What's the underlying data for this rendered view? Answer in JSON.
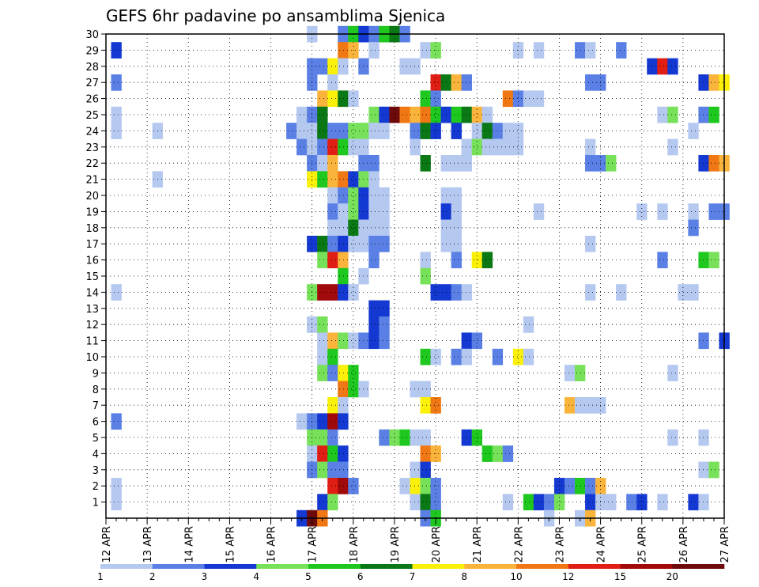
{
  "chart_data": {
    "type": "heatmap",
    "title": "GEFS 6hr padavine po ansamblima Sjenica",
    "xlabel": "",
    "ylabel": "",
    "x_ticks": [
      "12 APR",
      "13 APR",
      "14 APR",
      "15 APR",
      "16 APR",
      "17 APR",
      "18 APR",
      "19 APR",
      "20 APR",
      "21 APR",
      "22 APR",
      "23 APR",
      "24 APR",
      "25 APR",
      "26 APR",
      "27 APR"
    ],
    "x_range": [
      0,
      60
    ],
    "x_unit": "6-hour step from 12 APR 00Z",
    "y_ticks": [
      1,
      2,
      3,
      4,
      5,
      6,
      7,
      8,
      9,
      10,
      11,
      12,
      13,
      14,
      15,
      16,
      17,
      18,
      19,
      20,
      21,
      22,
      23,
      24,
      25,
      26,
      27,
      28,
      29,
      30
    ],
    "y_range": [
      0,
      30
    ],
    "grid": true,
    "legend": {
      "placement": "bottom",
      "levels": [
        "1",
        "2",
        "3",
        "4",
        "5",
        "6",
        "7",
        "8",
        "10",
        "12",
        "15",
        "20"
      ],
      "colors": [
        "#b4c8f0",
        "#5a80e6",
        "#1438d2",
        "#78e15a",
        "#1ec81e",
        "#0a7814",
        "#faf00a",
        "#fab43c",
        "#f07814",
        "#e11e14",
        "#a00a0a",
        "#6e0a0a"
      ]
    },
    "cells": [
      [
        20,
        30,
        0
      ],
      [
        23,
        30,
        1
      ],
      [
        24,
        30,
        4
      ],
      [
        25,
        30,
        2
      ],
      [
        26,
        30,
        1
      ],
      [
        27,
        30,
        4
      ],
      [
        28,
        30,
        5
      ],
      [
        29,
        30,
        1
      ],
      [
        1,
        29,
        2
      ],
      [
        23,
        29,
        8
      ],
      [
        24,
        29,
        7
      ],
      [
        26,
        29,
        0
      ],
      [
        31,
        29,
        0
      ],
      [
        32,
        29,
        3
      ],
      [
        40,
        29,
        0
      ],
      [
        42,
        29,
        0
      ],
      [
        46,
        29,
        1
      ],
      [
        47,
        29,
        0
      ],
      [
        50,
        29,
        1
      ],
      [
        20,
        28,
        1
      ],
      [
        21,
        28,
        1
      ],
      [
        22,
        28,
        6
      ],
      [
        23,
        28,
        0
      ],
      [
        25,
        28,
        1
      ],
      [
        29,
        28,
        0
      ],
      [
        30,
        28,
        0
      ],
      [
        53,
        28,
        2
      ],
      [
        54,
        28,
        9
      ],
      [
        55,
        28,
        2
      ],
      [
        1,
        27,
        1
      ],
      [
        20,
        27,
        1
      ],
      [
        22,
        27,
        0
      ],
      [
        32,
        27,
        9
      ],
      [
        33,
        27,
        5
      ],
      [
        34,
        27,
        7
      ],
      [
        35,
        27,
        1
      ],
      [
        47,
        27,
        1
      ],
      [
        48,
        27,
        1
      ],
      [
        58,
        27,
        2
      ],
      [
        59,
        27,
        7
      ],
      [
        60,
        27,
        6
      ],
      [
        21,
        26,
        7
      ],
      [
        22,
        26,
        6
      ],
      [
        23,
        26,
        5
      ],
      [
        24,
        26,
        0
      ],
      [
        31,
        26,
        4
      ],
      [
        32,
        26,
        1
      ],
      [
        39,
        26,
        8
      ],
      [
        40,
        26,
        1
      ],
      [
        41,
        26,
        0
      ],
      [
        42,
        26,
        0
      ],
      [
        1,
        25,
        0
      ],
      [
        19,
        25,
        0
      ],
      [
        20,
        25,
        1
      ],
      [
        21,
        25,
        5
      ],
      [
        26,
        25,
        3
      ],
      [
        27,
        25,
        2
      ],
      [
        28,
        25,
        11
      ],
      [
        29,
        25,
        8
      ],
      [
        30,
        25,
        7
      ],
      [
        31,
        25,
        8
      ],
      [
        32,
        25,
        4
      ],
      [
        33,
        25,
        2
      ],
      [
        34,
        25,
        4
      ],
      [
        35,
        25,
        5
      ],
      [
        36,
        25,
        7
      ],
      [
        37,
        25,
        0
      ],
      [
        54,
        25,
        0
      ],
      [
        55,
        25,
        3
      ],
      [
        58,
        25,
        1
      ],
      [
        59,
        25,
        4
      ],
      [
        1,
        24,
        0
      ],
      [
        5,
        24,
        0
      ],
      [
        18,
        24,
        1
      ],
      [
        19,
        24,
        0
      ],
      [
        20,
        24,
        0
      ],
      [
        21,
        24,
        5
      ],
      [
        22,
        24,
        1
      ],
      [
        23,
        24,
        1
      ],
      [
        24,
        24,
        3
      ],
      [
        25,
        24,
        3
      ],
      [
        26,
        24,
        0
      ],
      [
        27,
        24,
        0
      ],
      [
        30,
        24,
        1
      ],
      [
        31,
        24,
        5
      ],
      [
        32,
        24,
        2
      ],
      [
        34,
        24,
        2
      ],
      [
        36,
        24,
        0
      ],
      [
        37,
        24,
        5
      ],
      [
        38,
        24,
        1
      ],
      [
        39,
        24,
        0
      ],
      [
        40,
        24,
        0
      ],
      [
        57,
        24,
        0
      ],
      [
        19,
        23,
        1
      ],
      [
        20,
        23,
        0
      ],
      [
        21,
        23,
        1
      ],
      [
        22,
        23,
        9
      ],
      [
        23,
        23,
        4
      ],
      [
        24,
        23,
        0
      ],
      [
        25,
        23,
        0
      ],
      [
        30,
        23,
        0
      ],
      [
        35,
        23,
        0
      ],
      [
        36,
        23,
        3
      ],
      [
        37,
        23,
        0
      ],
      [
        38,
        23,
        0
      ],
      [
        39,
        23,
        0
      ],
      [
        40,
        23,
        0
      ],
      [
        47,
        23,
        0
      ],
      [
        55,
        23,
        0
      ],
      [
        20,
        22,
        1
      ],
      [
        21,
        22,
        0
      ],
      [
        22,
        22,
        7
      ],
      [
        25,
        22,
        1
      ],
      [
        26,
        22,
        1
      ],
      [
        31,
        22,
        5
      ],
      [
        33,
        22,
        0
      ],
      [
        34,
        22,
        0
      ],
      [
        35,
        22,
        0
      ],
      [
        47,
        22,
        1
      ],
      [
        48,
        22,
        1
      ],
      [
        49,
        22,
        3
      ],
      [
        58,
        22,
        2
      ],
      [
        59,
        22,
        8
      ],
      [
        60,
        22,
        7
      ],
      [
        5,
        21,
        0
      ],
      [
        20,
        21,
        6
      ],
      [
        21,
        21,
        4
      ],
      [
        22,
        21,
        7
      ],
      [
        23,
        21,
        8
      ],
      [
        24,
        21,
        2
      ],
      [
        25,
        21,
        3
      ],
      [
        26,
        21,
        0
      ],
      [
        22,
        20,
        0
      ],
      [
        23,
        20,
        1
      ],
      [
        24,
        20,
        3
      ],
      [
        25,
        20,
        2
      ],
      [
        26,
        20,
        0
      ],
      [
        27,
        20,
        0
      ],
      [
        33,
        20,
        0
      ],
      [
        34,
        20,
        0
      ],
      [
        22,
        19,
        1
      ],
      [
        23,
        19,
        0
      ],
      [
        24,
        19,
        3
      ],
      [
        25,
        19,
        2
      ],
      [
        26,
        19,
        0
      ],
      [
        27,
        19,
        0
      ],
      [
        33,
        19,
        2
      ],
      [
        34,
        19,
        0
      ],
      [
        42,
        19,
        0
      ],
      [
        52,
        19,
        0
      ],
      [
        54,
        19,
        0
      ],
      [
        57,
        19,
        0
      ],
      [
        59,
        19,
        1
      ],
      [
        60,
        19,
        1
      ],
      [
        22,
        18,
        0
      ],
      [
        23,
        18,
        0
      ],
      [
        24,
        18,
        5
      ],
      [
        25,
        18,
        0
      ],
      [
        26,
        18,
        0
      ],
      [
        27,
        18,
        0
      ],
      [
        33,
        18,
        0
      ],
      [
        34,
        18,
        0
      ],
      [
        57,
        18,
        1
      ],
      [
        20,
        17,
        2
      ],
      [
        21,
        17,
        5
      ],
      [
        22,
        17,
        1
      ],
      [
        23,
        17,
        2
      ],
      [
        24,
        17,
        0
      ],
      [
        25,
        17,
        0
      ],
      [
        26,
        17,
        1
      ],
      [
        27,
        17,
        1
      ],
      [
        33,
        17,
        0
      ],
      [
        34,
        17,
        0
      ],
      [
        47,
        17,
        0
      ],
      [
        21,
        16,
        3
      ],
      [
        22,
        16,
        9
      ],
      [
        23,
        16,
        7
      ],
      [
        26,
        16,
        1
      ],
      [
        31,
        16,
        0
      ],
      [
        34,
        16,
        1
      ],
      [
        36,
        16,
        6
      ],
      [
        37,
        16,
        5
      ],
      [
        54,
        16,
        1
      ],
      [
        58,
        16,
        4
      ],
      [
        59,
        16,
        3
      ],
      [
        23,
        15,
        4
      ],
      [
        25,
        15,
        0
      ],
      [
        31,
        15,
        3
      ],
      [
        1,
        14,
        0
      ],
      [
        20,
        14,
        3
      ],
      [
        21,
        14,
        10
      ],
      [
        22,
        14,
        10
      ],
      [
        23,
        14,
        2
      ],
      [
        24,
        14,
        0
      ],
      [
        32,
        14,
        2
      ],
      [
        33,
        14,
        2
      ],
      [
        34,
        14,
        1
      ],
      [
        35,
        14,
        0
      ],
      [
        47,
        14,
        0
      ],
      [
        50,
        14,
        0
      ],
      [
        56,
        14,
        0
      ],
      [
        57,
        14,
        0
      ],
      [
        26,
        13,
        2
      ],
      [
        27,
        13,
        2
      ],
      [
        26,
        12,
        2
      ],
      [
        27,
        12,
        1
      ],
      [
        20,
        12,
        0
      ],
      [
        21,
        12,
        3
      ],
      [
        41,
        12,
        0
      ],
      [
        21,
        11,
        0
      ],
      [
        22,
        11,
        7
      ],
      [
        23,
        11,
        3
      ],
      [
        24,
        11,
        0
      ],
      [
        25,
        11,
        1
      ],
      [
        26,
        11,
        2
      ],
      [
        27,
        11,
        1
      ],
      [
        35,
        11,
        2
      ],
      [
        36,
        11,
        1
      ],
      [
        58,
        11,
        1
      ],
      [
        60,
        11,
        2
      ],
      [
        21,
        10,
        0
      ],
      [
        22,
        10,
        4
      ],
      [
        31,
        10,
        4
      ],
      [
        32,
        10,
        0
      ],
      [
        34,
        10,
        1
      ],
      [
        35,
        10,
        0
      ],
      [
        38,
        10,
        1
      ],
      [
        40,
        10,
        6
      ],
      [
        41,
        10,
        0
      ],
      [
        21,
        9,
        3
      ],
      [
        22,
        9,
        1
      ],
      [
        23,
        9,
        6
      ],
      [
        24,
        9,
        4
      ],
      [
        45,
        9,
        0
      ],
      [
        46,
        9,
        3
      ],
      [
        55,
        9,
        0
      ],
      [
        23,
        8,
        8
      ],
      [
        24,
        8,
        4
      ],
      [
        25,
        8,
        0
      ],
      [
        30,
        8,
        0
      ],
      [
        31,
        8,
        0
      ],
      [
        22,
        7,
        6
      ],
      [
        23,
        7,
        0
      ],
      [
        31,
        7,
        6
      ],
      [
        32,
        7,
        8
      ],
      [
        45,
        7,
        7
      ],
      [
        46,
        7,
        0
      ],
      [
        47,
        7,
        0
      ],
      [
        48,
        7,
        0
      ],
      [
        1,
        6,
        1
      ],
      [
        19,
        6,
        0
      ],
      [
        20,
        6,
        1
      ],
      [
        21,
        6,
        2
      ],
      [
        22,
        6,
        10
      ],
      [
        23,
        6,
        2
      ],
      [
        20,
        5,
        3
      ],
      [
        21,
        5,
        3
      ],
      [
        22,
        5,
        1
      ],
      [
        27,
        5,
        1
      ],
      [
        28,
        5,
        3
      ],
      [
        29,
        5,
        4
      ],
      [
        30,
        5,
        0
      ],
      [
        31,
        5,
        0
      ],
      [
        35,
        5,
        2
      ],
      [
        36,
        5,
        4
      ],
      [
        55,
        5,
        0
      ],
      [
        58,
        5,
        0
      ],
      [
        20,
        4,
        0
      ],
      [
        21,
        4,
        9
      ],
      [
        22,
        4,
        4
      ],
      [
        23,
        4,
        2
      ],
      [
        31,
        4,
        8
      ],
      [
        32,
        4,
        7
      ],
      [
        37,
        4,
        4
      ],
      [
        38,
        4,
        3
      ],
      [
        39,
        4,
        1
      ],
      [
        20,
        3,
        1
      ],
      [
        21,
        3,
        3
      ],
      [
        22,
        3,
        1
      ],
      [
        23,
        3,
        1
      ],
      [
        30,
        3,
        0
      ],
      [
        31,
        3,
        2
      ],
      [
        58,
        3,
        0
      ],
      [
        59,
        3,
        3
      ],
      [
        1,
        2,
        0
      ],
      [
        22,
        2,
        9
      ],
      [
        23,
        2,
        10
      ],
      [
        24,
        2,
        1
      ],
      [
        29,
        2,
        0
      ],
      [
        30,
        2,
        6
      ],
      [
        31,
        2,
        3
      ],
      [
        32,
        2,
        1
      ],
      [
        44,
        2,
        2
      ],
      [
        45,
        2,
        1
      ],
      [
        46,
        2,
        4
      ],
      [
        47,
        2,
        1
      ],
      [
        48,
        2,
        7
      ],
      [
        1,
        1,
        0
      ],
      [
        21,
        1,
        2
      ],
      [
        22,
        1,
        3
      ],
      [
        30,
        1,
        0
      ],
      [
        31,
        1,
        5
      ],
      [
        32,
        1,
        1
      ],
      [
        39,
        1,
        0
      ],
      [
        41,
        1,
        4
      ],
      [
        42,
        1,
        2
      ],
      [
        43,
        1,
        1
      ],
      [
        44,
        1,
        3
      ],
      [
        47,
        1,
        2
      ],
      [
        48,
        1,
        0
      ],
      [
        49,
        1,
        0
      ],
      [
        51,
        1,
        1
      ],
      [
        52,
        1,
        2
      ],
      [
        54,
        1,
        0
      ],
      [
        57,
        1,
        2
      ],
      [
        58,
        1,
        0
      ],
      [
        19,
        0,
        2
      ],
      [
        20,
        0,
        11
      ],
      [
        21,
        0,
        8
      ],
      [
        31,
        0,
        1
      ],
      [
        32,
        0,
        4
      ],
      [
        43,
        0,
        0
      ],
      [
        46,
        0,
        0
      ],
      [
        47,
        0,
        7
      ]
    ]
  }
}
